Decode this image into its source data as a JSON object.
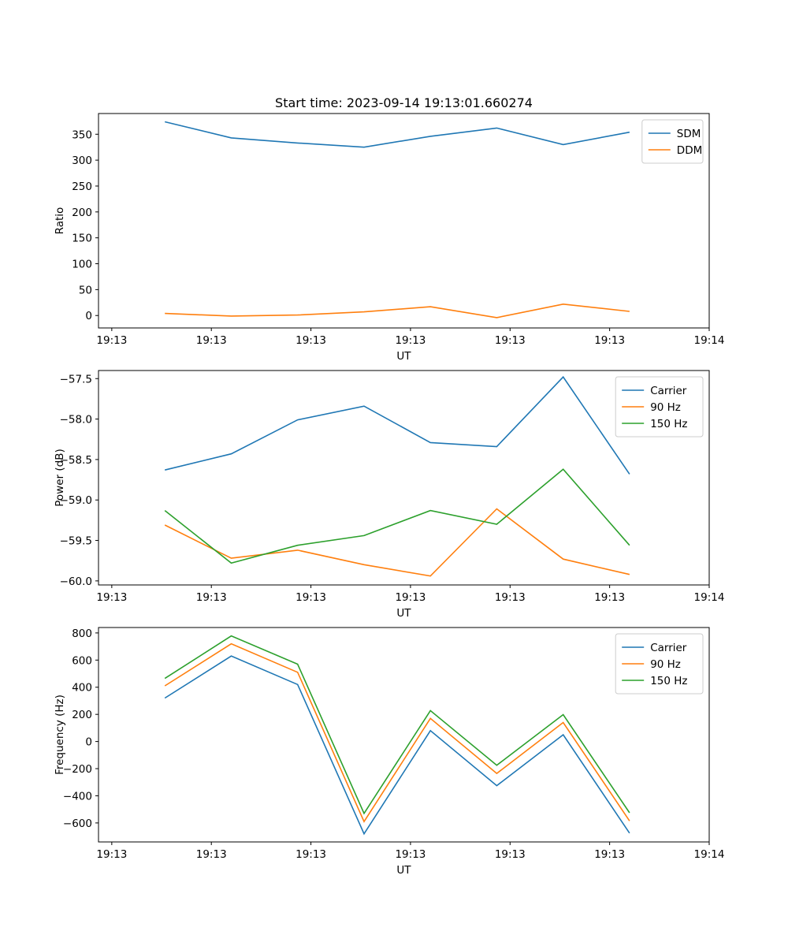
{
  "figure_title": "Start time: 2023-09-14 19:13:01.660274",
  "colors": {
    "blue": "#1f77b4",
    "orange": "#ff7f0e",
    "green": "#2ca02c",
    "axis": "#000000",
    "legend_border": "#cccccc"
  },
  "chart_data": [
    {
      "type": "line",
      "title": "Start time: 2023-09-14 19:13:01.660274",
      "xlabel": "UT",
      "ylabel": "Ratio",
      "x": [
        1,
        2,
        3,
        4,
        5,
        6,
        7,
        8
      ],
      "xlim": [
        0,
        9.2
      ],
      "x_ticks": [
        0.2,
        1.7,
        3.2,
        4.7,
        6.2,
        7.7,
        9.2
      ],
      "x_tick_labels": [
        "19:13",
        "19:13",
        "19:13",
        "19:13",
        "19:13",
        "19:13",
        "19:14"
      ],
      "ylim": [
        -24,
        390
      ],
      "y_ticks": [
        0,
        50,
        100,
        150,
        200,
        250,
        300,
        350
      ],
      "y_tick_labels": [
        "0",
        "50",
        "100",
        "150",
        "200",
        "250",
        "300",
        "350"
      ],
      "legend": "top-right",
      "series": [
        {
          "name": "SDM",
          "color": "#1f77b4",
          "values": [
            374,
            343,
            333,
            325,
            346,
            362,
            330,
            354
          ]
        },
        {
          "name": "DDM",
          "color": "#ff7f0e",
          "values": [
            4,
            -1,
            1,
            7,
            17,
            -4,
            22,
            8
          ]
        }
      ]
    },
    {
      "type": "line",
      "title": "",
      "xlabel": "UT",
      "ylabel": "Power (dB)",
      "x": [
        1,
        2,
        3,
        4,
        5,
        6,
        7,
        8
      ],
      "xlim": [
        0,
        9.2
      ],
      "x_ticks": [
        0.2,
        1.7,
        3.2,
        4.7,
        6.2,
        7.7,
        9.2
      ],
      "x_tick_labels": [
        "19:13",
        "19:13",
        "19:13",
        "19:13",
        "19:13",
        "19:13",
        "19:14"
      ],
      "ylim": [
        -60.05,
        -57.4
      ],
      "y_ticks": [
        -60.0,
        -59.5,
        -59.0,
        -58.5,
        -58.0,
        -57.5
      ],
      "y_tick_labels": [
        "−60.0",
        "−59.5",
        "−59.0",
        "−58.5",
        "−58.0",
        "−57.5"
      ],
      "legend": "top-right",
      "series": [
        {
          "name": "Carrier",
          "color": "#1f77b4",
          "values": [
            -58.63,
            -58.43,
            -58.01,
            -57.84,
            -58.29,
            -58.34,
            -57.48,
            -58.68
          ]
        },
        {
          "name": "90 Hz",
          "color": "#ff7f0e",
          "values": [
            -59.31,
            -59.72,
            -59.62,
            -59.8,
            -59.94,
            -59.11,
            -59.73,
            -59.92
          ]
        },
        {
          "name": "150 Hz",
          "color": "#2ca02c",
          "values": [
            -59.13,
            -59.78,
            -59.56,
            -59.44,
            -59.13,
            -59.3,
            -58.62,
            -59.56
          ]
        }
      ]
    },
    {
      "type": "line",
      "title": "",
      "xlabel": "UT",
      "ylabel": "Frequency (Hz)",
      "x": [
        1,
        2,
        3,
        4,
        5,
        6,
        7,
        8
      ],
      "xlim": [
        0,
        9.2
      ],
      "x_ticks": [
        0.2,
        1.7,
        3.2,
        4.7,
        6.2,
        7.7,
        9.2
      ],
      "x_tick_labels": [
        "19:13",
        "19:13",
        "19:13",
        "19:13",
        "19:13",
        "19:13",
        "19:14"
      ],
      "ylim": [
        -740,
        840
      ],
      "y_ticks": [
        -600,
        -400,
        -200,
        0,
        200,
        400,
        600,
        800
      ],
      "y_tick_labels": [
        "−600",
        "−400",
        "−200",
        "0",
        "200",
        "400",
        "600",
        "800"
      ],
      "legend": "top-right",
      "series": [
        {
          "name": "Carrier",
          "color": "#1f77b4",
          "values": [
            320,
            630,
            420,
            -680,
            80,
            -325,
            50,
            -675
          ]
        },
        {
          "name": "90 Hz",
          "color": "#ff7f0e",
          "values": [
            410,
            720,
            510,
            -590,
            170,
            -235,
            140,
            -585
          ]
        },
        {
          "name": "150 Hz",
          "color": "#2ca02c",
          "values": [
            465,
            778,
            570,
            -530,
            228,
            -175,
            198,
            -525
          ]
        }
      ]
    }
  ]
}
